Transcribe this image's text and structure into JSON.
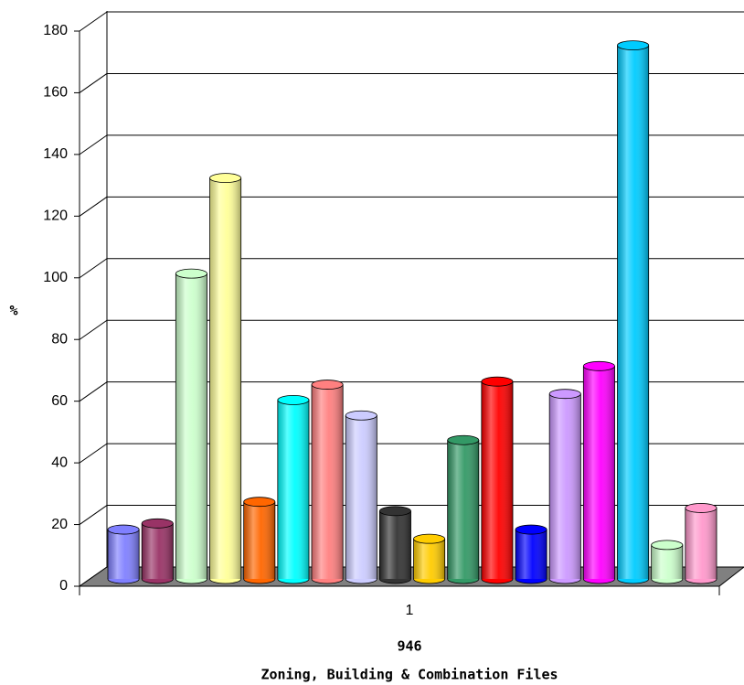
{
  "chart_data": {
    "type": "bar3d",
    "ylabel": "%",
    "xlabel": "946",
    "xlabel_sub": "Zoning, Building & Combination Files",
    "categories": [
      "1"
    ],
    "ylim": [
      0,
      180
    ],
    "yticks": [
      0,
      20,
      40,
      60,
      80,
      100,
      120,
      140,
      160,
      180
    ],
    "grid": true,
    "series": [
      {
        "color": "#8080ff",
        "values": [
          16
        ]
      },
      {
        "color": "#993366",
        "values": [
          18
        ]
      },
      {
        "color": "#ccffcc",
        "values": [
          99
        ]
      },
      {
        "color": "#ffff99",
        "values": [
          130
        ]
      },
      {
        "color": "#ff6600",
        "values": [
          25
        ]
      },
      {
        "color": "#00ffff",
        "values": [
          58
        ]
      },
      {
        "color": "#ff8080",
        "values": [
          63
        ]
      },
      {
        "color": "#ccccff",
        "values": [
          53
        ]
      },
      {
        "color": "#333333",
        "values": [
          22
        ]
      },
      {
        "color": "#ffcc00",
        "values": [
          13
        ]
      },
      {
        "color": "#339966",
        "values": [
          45
        ]
      },
      {
        "color": "#ff0000",
        "values": [
          64
        ]
      },
      {
        "color": "#0000ff",
        "values": [
          16
        ]
      },
      {
        "color": "#cc99ff",
        "values": [
          60
        ]
      },
      {
        "color": "#ff00ff",
        "values": [
          69
        ]
      },
      {
        "color": "#00ccff",
        "values": [
          173
        ]
      },
      {
        "color": "#ccffcc",
        "values": [
          11
        ]
      },
      {
        "color": "#ff99cc",
        "values": [
          23
        ]
      }
    ]
  }
}
